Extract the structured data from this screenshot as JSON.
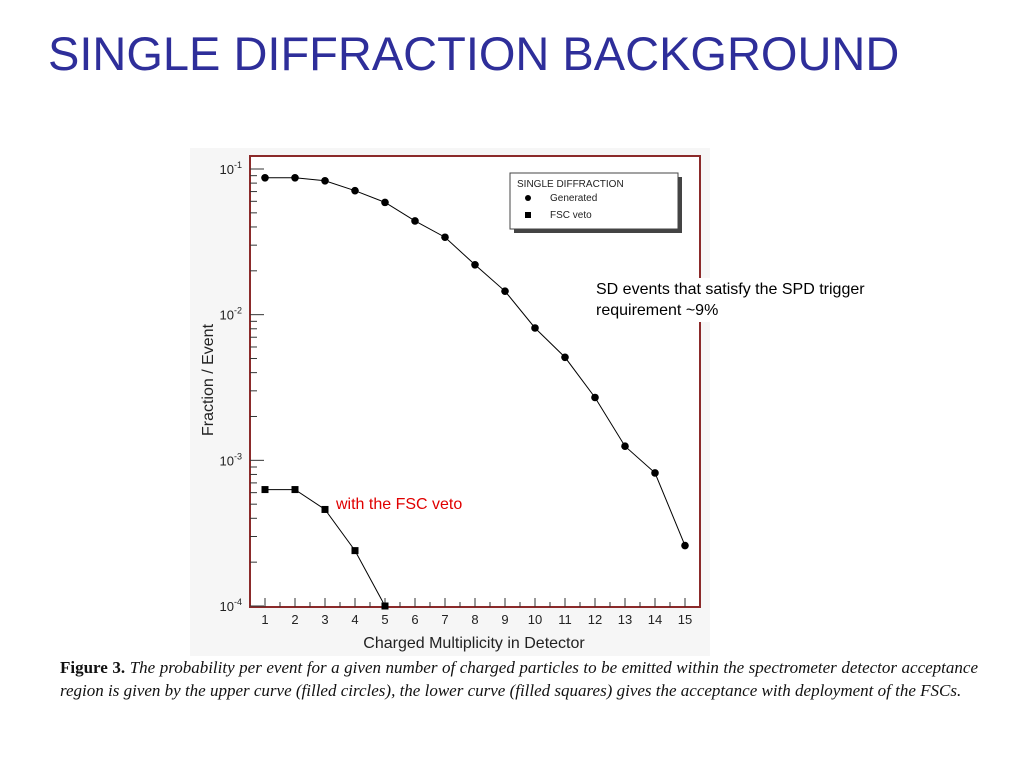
{
  "slide": {
    "title": "SINGLE DIFFRACTION BACKGROUND",
    "title_color": "#2e2e9a"
  },
  "colors": {
    "frame_border": "#8b2a2a",
    "plot_background": "#ffffff",
    "series_line": "#000000",
    "annotation_red": "#e00000"
  },
  "annotations": {
    "spd_trigger": "SD events that satisfy the SPD trigger requirement ~9%",
    "fsc_veto": "with the FSC veto"
  },
  "caption": {
    "label": "Figure 3.",
    "text": "The probability per event for a given number of charged particles to be emitted within the spectrometer detector acceptance region is given by the upper curve (filled circles), the lower curve (filled squares) gives the acceptance with deployment of the FSCs."
  },
  "chart_data": {
    "type": "line",
    "title": "",
    "xlabel": "Charged Multiplicity in Detector",
    "ylabel": "Fraction / Event",
    "y_scale": "log",
    "xlim": [
      0.5,
      15.5
    ],
    "ylim": [
      0.0001,
      0.1
    ],
    "x_ticks": [
      1,
      2,
      3,
      4,
      5,
      6,
      7,
      8,
      9,
      10,
      11,
      12,
      13,
      14,
      15
    ],
    "x_tick_labels": [
      "1",
      "2",
      "3",
      "4",
      "5",
      "6",
      "7",
      "8",
      "9",
      "10",
      "11",
      "12",
      "13",
      "14",
      "15"
    ],
    "y_ticks": [
      {
        "value": 0.1,
        "base": "10",
        "exp": "-1"
      },
      {
        "value": 0.01,
        "base": "10",
        "exp": "-2"
      },
      {
        "value": 0.001,
        "base": "10",
        "exp": "-3"
      },
      {
        "value": 0.0001,
        "base": "10",
        "exp": "-4"
      }
    ],
    "grid": false,
    "legend": {
      "title": "SINGLE DIFFRACTION",
      "position": "top-right"
    },
    "series": [
      {
        "name": "Generated",
        "marker": "circle",
        "x": [
          1,
          2,
          3,
          4,
          5,
          6,
          7,
          8,
          9,
          10,
          11,
          12,
          13,
          14,
          15
        ],
        "y": [
          0.087,
          0.087,
          0.083,
          0.071,
          0.059,
          0.044,
          0.034,
          0.022,
          0.0145,
          0.0081,
          0.0051,
          0.0027,
          0.00125,
          0.00082,
          0.00026
        ]
      },
      {
        "name": "FSC veto",
        "marker": "square",
        "x": [
          1,
          2,
          3,
          4,
          5
        ],
        "y": [
          0.00063,
          0.00063,
          0.00046,
          0.00024,
          0.0001
        ]
      }
    ]
  }
}
